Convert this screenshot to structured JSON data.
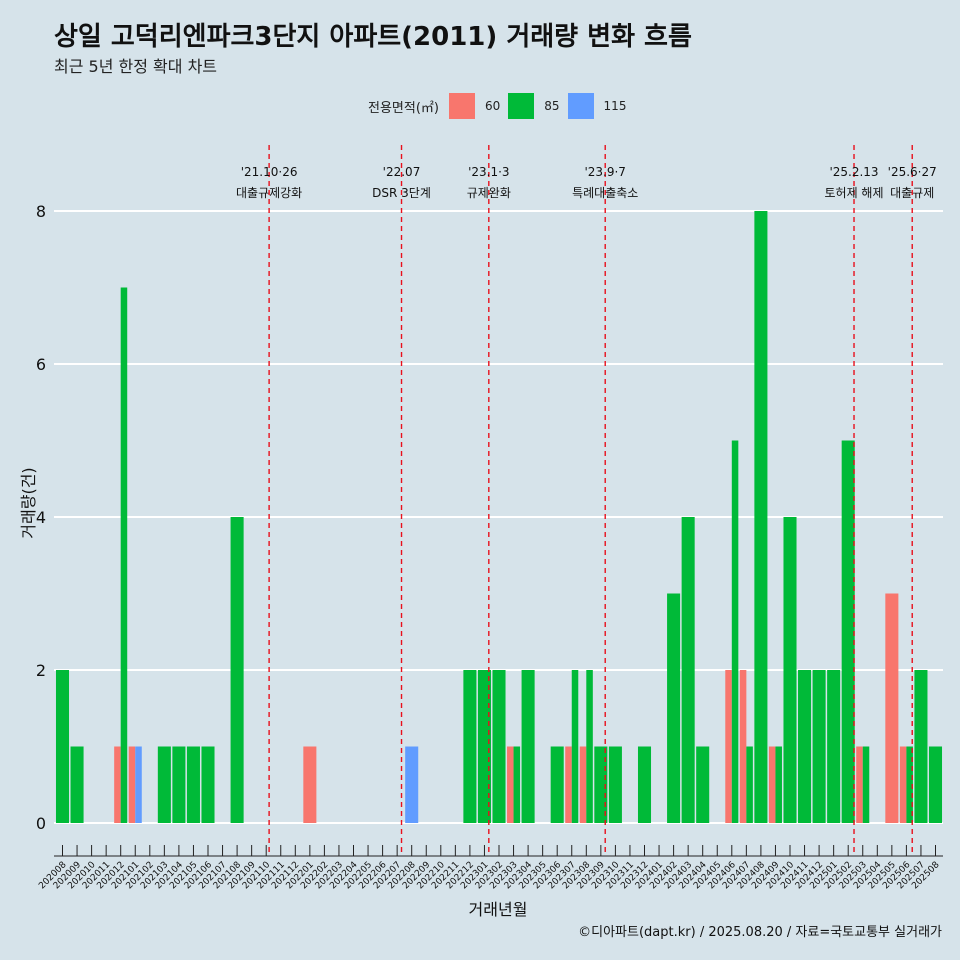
{
  "header": {
    "title": "상일 고덕리엔파크3단지 아파트(2011) 거래량 변화 흐름",
    "subtitle": "최근 5년 한정 확대 차트"
  },
  "legend": {
    "title": "전용면적(㎡)",
    "items": [
      {
        "label": "60",
        "color": "#f8766d"
      },
      {
        "label": "85",
        "color": "#00ba38"
      },
      {
        "label": "115",
        "color": "#619cff"
      }
    ]
  },
  "caption": "©디아파트(dapt.kr) / 2025.08.20 / 자료=국토교통부 실거래가",
  "chart_data": {
    "type": "bar",
    "title": "상일 고덕리엔파크3단지 아파트(2011) 거래량 변화 흐름",
    "subtitle": "최근 5년 한정 확대 차트",
    "xlabel": "거래년월",
    "ylabel": "거래량(건)",
    "ylim": [
      0,
      8
    ],
    "yticks": [
      0,
      2,
      4,
      6,
      8
    ],
    "grid": true,
    "legend_position": "top",
    "categories": [
      "202008",
      "202009",
      "202010",
      "202011",
      "202012",
      "202101",
      "202102",
      "202103",
      "202104",
      "202105",
      "202106",
      "202107",
      "202108",
      "202109",
      "202110",
      "202111",
      "202112",
      "202201",
      "202202",
      "202203",
      "202204",
      "202205",
      "202206",
      "202207",
      "202208",
      "202209",
      "202210",
      "202211",
      "202212",
      "202301",
      "202302",
      "202303",
      "202304",
      "202305",
      "202306",
      "202307",
      "202308",
      "202309",
      "202310",
      "202311",
      "202312",
      "202401",
      "202402",
      "202403",
      "202404",
      "202405",
      "202406",
      "202407",
      "202408",
      "202409",
      "202410",
      "202411",
      "202412",
      "202501",
      "202502",
      "202503",
      "202504",
      "202505",
      "202506",
      "202507",
      "202508"
    ],
    "series": [
      {
        "name": "60",
        "color": "#f8766d",
        "values": [
          0,
          0,
          0,
          0,
          1,
          1,
          0,
          0,
          0,
          0,
          0,
          0,
          0,
          0,
          0,
          0,
          0,
          1,
          0,
          0,
          0,
          0,
          0,
          0,
          0,
          0,
          0,
          0,
          0,
          0,
          0,
          1,
          0,
          0,
          0,
          1,
          1,
          0,
          0,
          0,
          0,
          0,
          0,
          0,
          0,
          0,
          2,
          2,
          0,
          1,
          0,
          0,
          0,
          0,
          0,
          1,
          0,
          3,
          1,
          0,
          0
        ]
      },
      {
        "name": "85",
        "color": "#00ba38",
        "values": [
          2,
          1,
          0,
          0,
          7,
          0,
          0,
          1,
          1,
          1,
          1,
          0,
          4,
          0,
          0,
          0,
          0,
          0,
          0,
          0,
          0,
          0,
          0,
          0,
          0,
          0,
          0,
          0,
          2,
          2,
          2,
          1,
          2,
          0,
          1,
          2,
          2,
          1,
          1,
          0,
          1,
          0,
          3,
          4,
          1,
          0,
          5,
          1,
          8,
          1,
          4,
          2,
          2,
          2,
          5,
          1,
          0,
          0,
          1,
          2,
          1
        ]
      },
      {
        "name": "115",
        "color": "#619cff",
        "values": [
          0,
          0,
          0,
          0,
          0,
          1,
          0,
          0,
          0,
          0,
          0,
          0,
          0,
          0,
          0,
          0,
          0,
          0,
          0,
          0,
          0,
          0,
          0,
          0,
          1,
          0,
          0,
          0,
          0,
          0,
          0,
          0,
          0,
          0,
          0,
          0,
          0,
          0,
          0,
          0,
          0,
          0,
          0,
          0,
          0,
          0,
          0,
          0,
          0,
          0,
          0,
          0,
          0,
          0,
          0,
          0,
          0,
          0,
          0,
          0,
          0
        ]
      }
    ],
    "annotations": [
      {
        "x": 14.2,
        "line1": "'21.10·26",
        "line2": "대출규제강화"
      },
      {
        "x": 23.3,
        "line1": "'22.07",
        "line2": "DSR 3단계"
      },
      {
        "x": 29.3,
        "line1": "'23.1·3",
        "line2": "규제완화"
      },
      {
        "x": 37.3,
        "line1": "'23.9·7",
        "line2": "특례대출축소"
      },
      {
        "x": 54.4,
        "line1": "'25.2.13",
        "line2": "토허제 해제"
      },
      {
        "x": 58.4,
        "line1": "'25.6·27",
        "line2": "대출규제"
      }
    ]
  }
}
